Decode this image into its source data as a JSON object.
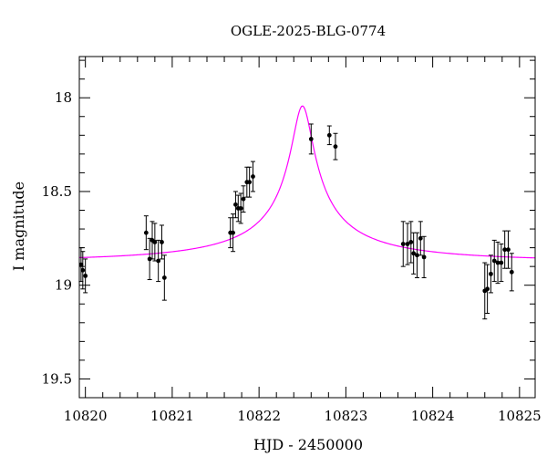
{
  "chart_data": {
    "type": "scatter",
    "title": "OGLE-2025-BLG-0774",
    "xlabel": "HJD - 2450000",
    "ylabel": "I magnitude",
    "xlim": [
      10819.93,
      10825.18
    ],
    "ylim": [
      19.6,
      17.78
    ],
    "y_inverted": true,
    "x_ticks": [
      10820,
      10821,
      10822,
      10823,
      10824,
      10825
    ],
    "x_tick_labels": [
      "10820",
      "10821",
      "10822",
      "10823",
      "10824",
      "10825"
    ],
    "y_ticks": [
      18,
      18.5,
      19,
      19.5
    ],
    "y_tick_labels": [
      "18",
      "18.5",
      "19",
      "19.5"
    ],
    "grid": false,
    "colors": {
      "data": "#000000",
      "model": "#ff00ff",
      "frame": "#000000"
    },
    "series": [
      {
        "kind": "data-with-errorbars",
        "points": [
          {
            "x": 10819.95,
            "y": 18.89,
            "err": 0.09
          },
          {
            "x": 10819.97,
            "y": 18.92,
            "err": 0.1
          },
          {
            "x": 10820.0,
            "y": 18.95,
            "err": 0.09
          },
          {
            "x": 10820.7,
            "y": 18.72,
            "err": 0.09
          },
          {
            "x": 10820.74,
            "y": 18.86,
            "err": 0.11
          },
          {
            "x": 10820.77,
            "y": 18.76,
            "err": 0.1
          },
          {
            "x": 10820.8,
            "y": 18.77,
            "err": 0.1
          },
          {
            "x": 10820.84,
            "y": 18.87,
            "err": 0.11
          },
          {
            "x": 10820.88,
            "y": 18.77,
            "err": 0.09
          },
          {
            "x": 10820.91,
            "y": 18.96,
            "err": 0.12
          },
          {
            "x": 10821.67,
            "y": 18.72,
            "err": 0.08
          },
          {
            "x": 10821.7,
            "y": 18.72,
            "err": 0.1
          },
          {
            "x": 10821.73,
            "y": 18.57,
            "err": 0.07
          },
          {
            "x": 10821.76,
            "y": 18.59,
            "err": 0.07
          },
          {
            "x": 10821.79,
            "y": 18.59,
            "err": 0.08
          },
          {
            "x": 10821.82,
            "y": 18.54,
            "err": 0.07
          },
          {
            "x": 10821.86,
            "y": 18.45,
            "err": 0.08
          },
          {
            "x": 10821.89,
            "y": 18.45,
            "err": 0.08
          },
          {
            "x": 10821.93,
            "y": 18.42,
            "err": 0.08
          },
          {
            "x": 10822.6,
            "y": 18.22,
            "err": 0.08
          },
          {
            "x": 10822.81,
            "y": 18.2,
            "err": 0.05
          },
          {
            "x": 10822.88,
            "y": 18.26,
            "err": 0.07
          },
          {
            "x": 10823.66,
            "y": 18.78,
            "err": 0.12
          },
          {
            "x": 10823.71,
            "y": 18.78,
            "err": 0.11
          },
          {
            "x": 10823.75,
            "y": 18.77,
            "err": 0.11
          },
          {
            "x": 10823.78,
            "y": 18.83,
            "err": 0.11
          },
          {
            "x": 10823.82,
            "y": 18.84,
            "err": 0.12
          },
          {
            "x": 10823.86,
            "y": 18.75,
            "err": 0.09
          },
          {
            "x": 10823.9,
            "y": 18.85,
            "err": 0.11
          },
          {
            "x": 10824.6,
            "y": 19.03,
            "err": 0.15
          },
          {
            "x": 10824.63,
            "y": 19.02,
            "err": 0.13
          },
          {
            "x": 10824.67,
            "y": 18.94,
            "err": 0.1
          },
          {
            "x": 10824.71,
            "y": 18.87,
            "err": 0.11
          },
          {
            "x": 10824.75,
            "y": 18.88,
            "err": 0.11
          },
          {
            "x": 10824.79,
            "y": 18.88,
            "err": 0.1
          },
          {
            "x": 10824.83,
            "y": 18.81,
            "err": 0.1
          },
          {
            "x": 10824.87,
            "y": 18.81,
            "err": 0.1
          },
          {
            "x": 10824.91,
            "y": 18.93,
            "err": 0.1
          }
        ]
      },
      {
        "kind": "model-curve",
        "model": {
          "t0": 10822.5,
          "u0": 0.05,
          "tE": 2.3,
          "fs": 0.06,
          "m_base": 18.87
        }
      }
    ]
  }
}
